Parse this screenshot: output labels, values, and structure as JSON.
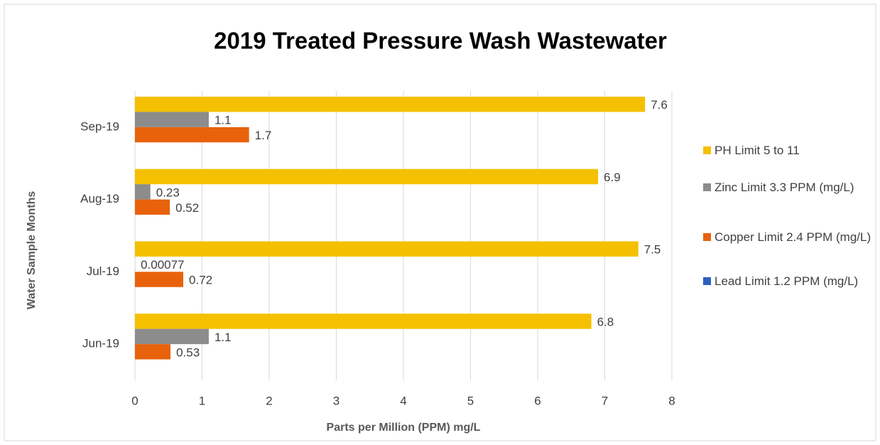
{
  "chart_data": {
    "type": "hbar",
    "title": "2019 Treated Pressure Wash Wastewater",
    "x_label": "Parts per Million (PPM) mg/L",
    "y_label": "Water Sample  Months",
    "categories": [
      "Jun-19",
      "Jul-19",
      "Aug-19",
      "Sep-19"
    ],
    "series": [
      {
        "name": "PH Limit 5 to 11",
        "color": "#f5c000",
        "values": [
          6.8,
          7.5,
          6.9,
          7.6
        ]
      },
      {
        "name": "Zinc Limit 3.3 PPM (mg/L)",
        "color": "#8c8c8c",
        "values": [
          1.1,
          0.00077,
          0.23,
          1.1
        ]
      },
      {
        "name": "Copper Limit 2.4 PPM (mg/L)",
        "color": "#e8620c",
        "values": [
          0.53,
          0.72,
          0.52,
          1.7
        ]
      },
      {
        "name": "Lead Limit 1.2 PPM (mg/L)",
        "color": "#2e5fbf",
        "values": [
          null,
          null,
          null,
          null
        ]
      }
    ],
    "xlim": [
      0,
      8
    ],
    "xticks": [
      0,
      1,
      2,
      3,
      4,
      5,
      6,
      7,
      8
    ],
    "grid": true,
    "legend": "right"
  }
}
